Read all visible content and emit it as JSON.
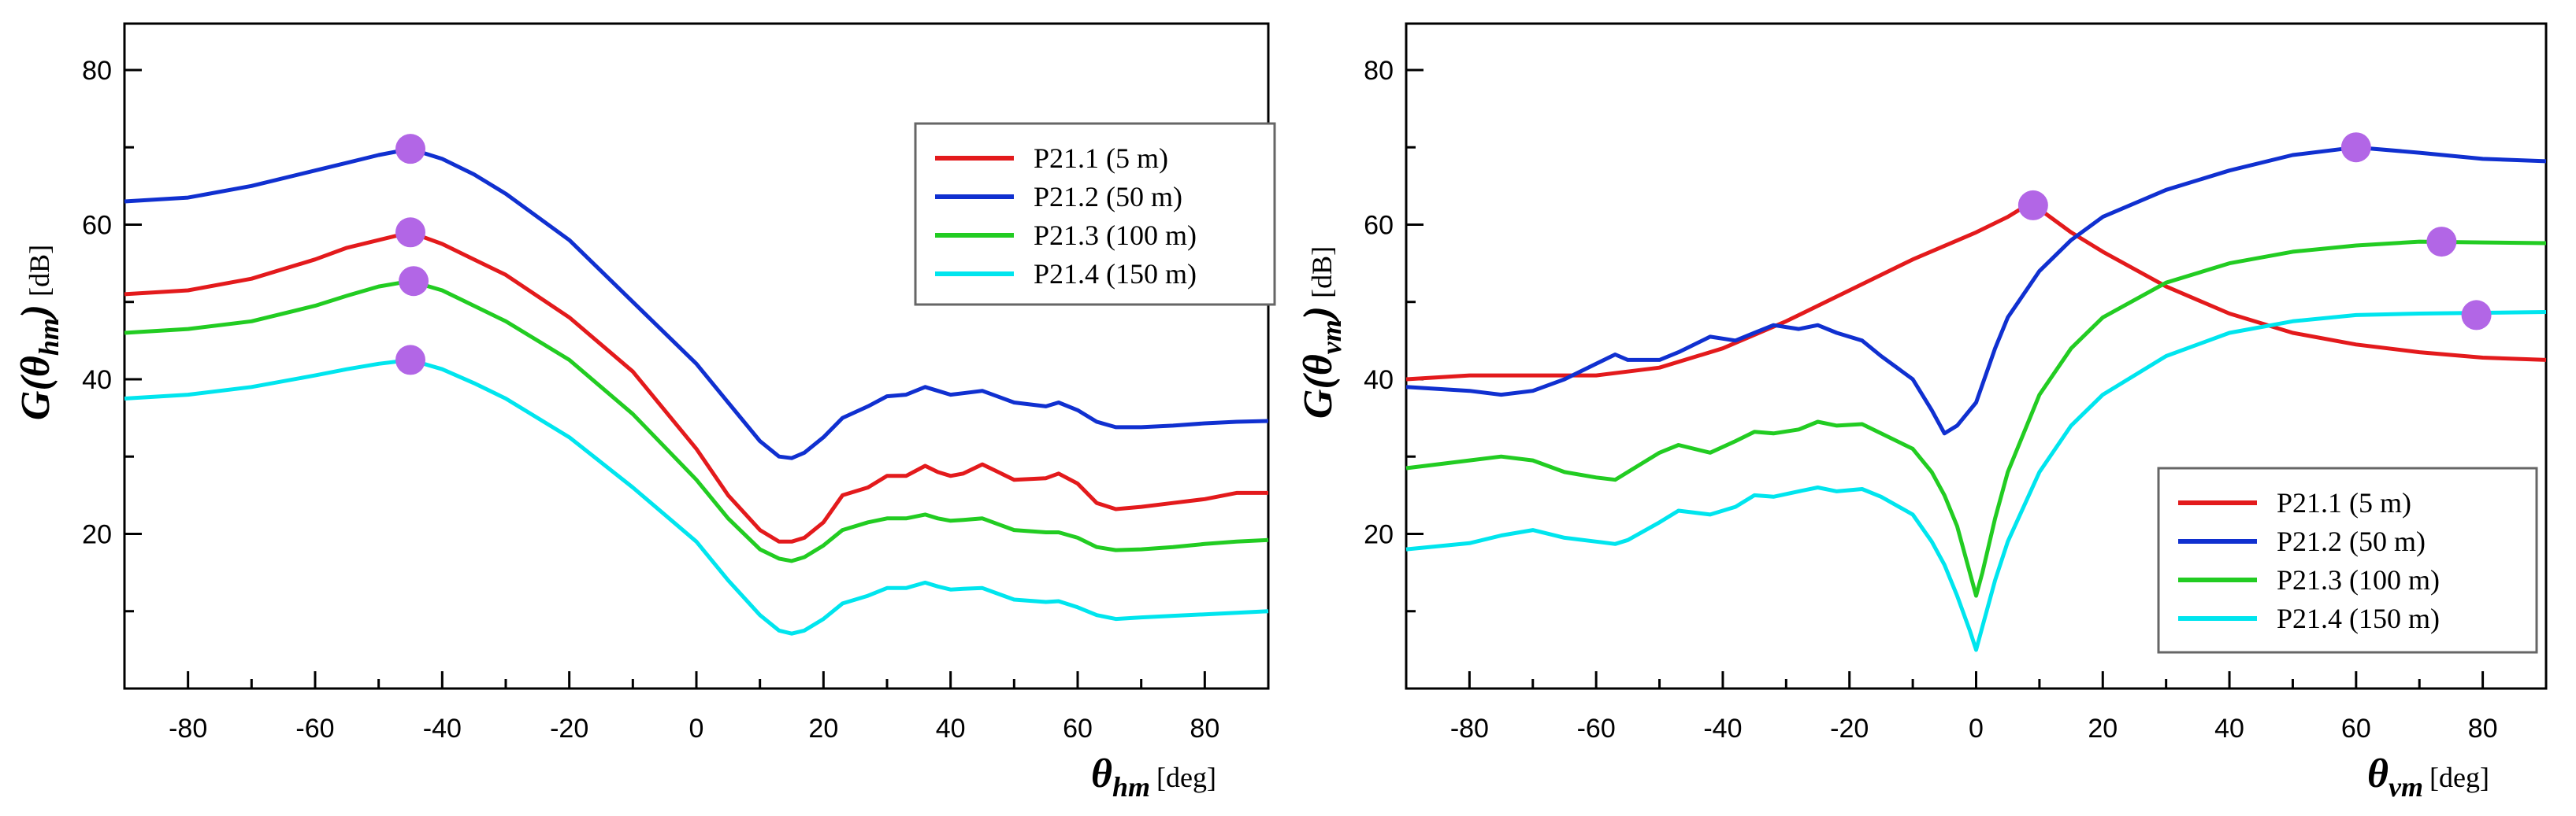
{
  "chart_data": [
    {
      "type": "line",
      "xlabel_symbol": "θ",
      "xlabel_sub": "hm",
      "xlabel_unit": "[deg]",
      "ylabel_main": "G(θ",
      "ylabel_sub": "hm",
      "ylabel_close": ")",
      "ylabel_unit": "[dB]",
      "xlim": [
        -90,
        90
      ],
      "ylim": [
        0,
        86
      ],
      "xticks": [
        -80,
        -60,
        -40,
        -20,
        0,
        20,
        40,
        60,
        80
      ],
      "yticks": [
        20,
        40,
        60,
        80
      ],
      "legend_position": "top-right",
      "series": [
        {
          "name": "P21.1 (5 m)",
          "color": "#e31a1c",
          "x": [
            -90,
            -80,
            -70,
            -60,
            -55,
            -50,
            -45,
            -40,
            -35,
            -30,
            -20,
            -10,
            0,
            5,
            10,
            13,
            15,
            17,
            20,
            23,
            27,
            30,
            33,
            36,
            38,
            40,
            42,
            45,
            50,
            55,
            57,
            60,
            63,
            66,
            70,
            75,
            80,
            85,
            90
          ],
          "y": [
            51,
            51.5,
            53,
            55.5,
            57,
            58,
            59,
            57.5,
            55.5,
            53.5,
            48,
            41,
            31,
            25,
            20.5,
            19,
            19,
            19.5,
            21.5,
            25,
            26,
            27.5,
            27.5,
            28.8,
            28,
            27.5,
            27.8,
            29,
            27,
            27.2,
            27.8,
            26.5,
            24,
            23.2,
            23.5,
            24,
            24.5,
            25.3,
            25.3
          ]
        },
        {
          "name": "P21.2 (50 m)",
          "color": "#1030d0",
          "x": [
            -90,
            -80,
            -70,
            -60,
            -55,
            -50,
            -45,
            -40,
            -35,
            -30,
            -20,
            -10,
            0,
            5,
            10,
            13,
            15,
            17,
            20,
            23,
            27,
            30,
            33,
            36,
            38,
            40,
            42,
            45,
            50,
            55,
            57,
            60,
            63,
            66,
            70,
            75,
            80,
            85,
            90
          ],
          "y": [
            63,
            63.5,
            65,
            67,
            68,
            69,
            69.8,
            68.5,
            66.5,
            64,
            58,
            50,
            42,
            37,
            32,
            30,
            29.8,
            30.5,
            32.5,
            35,
            36.5,
            37.8,
            38,
            39,
            38.5,
            38,
            38.2,
            38.5,
            37,
            36.5,
            37,
            36,
            34.5,
            33.8,
            33.8,
            34,
            34.3,
            34.5,
            34.6
          ]
        },
        {
          "name": "P21.3 (100 m)",
          "color": "#22cc22",
          "x": [
            -90,
            -80,
            -70,
            -60,
            -55,
            -50,
            -45,
            -40,
            -35,
            -30,
            -20,
            -10,
            0,
            5,
            10,
            13,
            15,
            17,
            20,
            23,
            27,
            30,
            33,
            36,
            38,
            40,
            42,
            45,
            50,
            55,
            57,
            60,
            63,
            66,
            70,
            75,
            80,
            85,
            90
          ],
          "y": [
            46,
            46.5,
            47.5,
            49.5,
            50.8,
            52,
            52.7,
            51.5,
            49.5,
            47.5,
            42.5,
            35.5,
            27,
            22,
            18,
            16.8,
            16.5,
            17,
            18.5,
            20.5,
            21.5,
            22,
            22,
            22.5,
            22,
            21.7,
            21.8,
            22,
            20.5,
            20.2,
            20.2,
            19.5,
            18.3,
            17.9,
            18,
            18.3,
            18.7,
            19,
            19.2
          ]
        },
        {
          "name": "P21.4 (150 m)",
          "color": "#00e5ee",
          "x": [
            -90,
            -80,
            -70,
            -60,
            -55,
            -50,
            -45,
            -40,
            -35,
            -30,
            -20,
            -10,
            0,
            5,
            10,
            13,
            15,
            17,
            20,
            23,
            27,
            30,
            33,
            36,
            38,
            40,
            42,
            45,
            50,
            55,
            57,
            60,
            63,
            66,
            70,
            75,
            80,
            85,
            90
          ],
          "y": [
            37.5,
            38,
            39,
            40.5,
            41.3,
            42,
            42.5,
            41.3,
            39.5,
            37.5,
            32.5,
            26,
            19,
            14,
            9.5,
            7.5,
            7.1,
            7.5,
            9,
            11,
            12,
            13,
            13,
            13.7,
            13.2,
            12.8,
            12.9,
            13,
            11.5,
            11.2,
            11.3,
            10.5,
            9.5,
            9,
            9.2,
            9.4,
            9.6,
            9.8,
            10
          ]
        }
      ],
      "markers": {
        "color": "#b266e6",
        "points": [
          {
            "x": -45,
            "y": 69.8
          },
          {
            "x": -45,
            "y": 59
          },
          {
            "x": -44.5,
            "y": 52.7
          },
          {
            "x": -45,
            "y": 42.5
          }
        ]
      }
    },
    {
      "type": "line",
      "xlabel_symbol": "θ",
      "xlabel_sub": "vm",
      "xlabel_unit": "[deg]",
      "ylabel_main": "G(θ",
      "ylabel_sub": "vm",
      "ylabel_close": ")",
      "ylabel_unit": "[dB]",
      "xlim": [
        -90,
        90
      ],
      "ylim": [
        0,
        86
      ],
      "xticks": [
        -80,
        -60,
        -40,
        -20,
        0,
        20,
        40,
        60,
        80
      ],
      "yticks": [
        20,
        40,
        60,
        80
      ],
      "legend_position": "bottom-right",
      "series": [
        {
          "name": "P21.1 (5 m)",
          "color": "#e31a1c",
          "x": [
            -90,
            -80,
            -70,
            -60,
            -50,
            -40,
            -30,
            -20,
            -10,
            0,
            5,
            8,
            10,
            15,
            20,
            30,
            40,
            50,
            60,
            70,
            80,
            90
          ],
          "y": [
            40,
            40.5,
            40.5,
            40.5,
            41.5,
            44,
            47.5,
            51.5,
            55.5,
            59,
            61,
            62.5,
            62,
            59,
            56.5,
            52,
            48.5,
            46,
            44.5,
            43.5,
            42.8,
            42.5
          ]
        },
        {
          "name": "P21.2 (50 m)",
          "color": "#1030d0",
          "x": [
            -90,
            -80,
            -75,
            -70,
            -65,
            -60,
            -57,
            -55,
            -50,
            -47,
            -42,
            -38,
            -35,
            -32,
            -28,
            -25,
            -22,
            -18,
            -15,
            -10,
            -7,
            -5,
            -3,
            0,
            3,
            5,
            10,
            15,
            20,
            30,
            40,
            50,
            60,
            70,
            80,
            90
          ],
          "y": [
            39,
            38.5,
            38,
            38.5,
            40,
            42,
            43.2,
            42.5,
            42.5,
            43.5,
            45.5,
            45,
            46,
            47,
            46.5,
            47,
            46,
            45,
            43,
            40,
            36,
            33,
            34,
            37,
            44,
            48,
            54,
            58,
            61,
            64.5,
            67,
            69,
            70,
            69.3,
            68.5,
            68.2
          ]
        },
        {
          "name": "P21.3 (100 m)",
          "color": "#22cc22",
          "x": [
            -90,
            -80,
            -75,
            -70,
            -65,
            -60,
            -57,
            -55,
            -50,
            -47,
            -42,
            -38,
            -35,
            -32,
            -28,
            -25,
            -22,
            -18,
            -15,
            -10,
            -7,
            -5,
            -3,
            -1,
            0,
            1,
            3,
            5,
            10,
            15,
            20,
            30,
            40,
            50,
            60,
            70,
            80,
            90
          ],
          "y": [
            28.5,
            29.5,
            30,
            29.5,
            28,
            27.3,
            27,
            28,
            30.5,
            31.5,
            30.5,
            32,
            33.2,
            33,
            33.5,
            34.5,
            34,
            34.2,
            33,
            31,
            28,
            25,
            21,
            15,
            12,
            15,
            22,
            28,
            38,
            44,
            48,
            52.5,
            55,
            56.5,
            57.3,
            57.8,
            57.7,
            57.6
          ]
        },
        {
          "name": "P21.4 (150 m)",
          "color": "#00e5ee",
          "x": [
            -90,
            -80,
            -75,
            -70,
            -65,
            -60,
            -57,
            -55,
            -50,
            -47,
            -42,
            -38,
            -35,
            -32,
            -28,
            -25,
            -22,
            -18,
            -15,
            -10,
            -7,
            -5,
            -3,
            -1,
            0,
            1,
            3,
            5,
            10,
            15,
            20,
            30,
            40,
            50,
            60,
            70,
            80,
            90
          ],
          "y": [
            18,
            18.8,
            19.8,
            20.5,
            19.5,
            19,
            18.7,
            19.2,
            21.5,
            23,
            22.5,
            23.5,
            25,
            24.8,
            25.5,
            26,
            25.5,
            25.8,
            24.8,
            22.5,
            19,
            16,
            12,
            7.5,
            5,
            8,
            14,
            19,
            28,
            34,
            38,
            43,
            46,
            47.5,
            48.3,
            48.5,
            48.6,
            48.7
          ]
        }
      ],
      "markers": {
        "color": "#b266e6",
        "points": [
          {
            "x": 9,
            "y": 62.5
          },
          {
            "x": 60,
            "y": 70
          },
          {
            "x": 73.5,
            "y": 57.8
          },
          {
            "x": 79,
            "y": 48.3
          }
        ]
      }
    }
  ]
}
